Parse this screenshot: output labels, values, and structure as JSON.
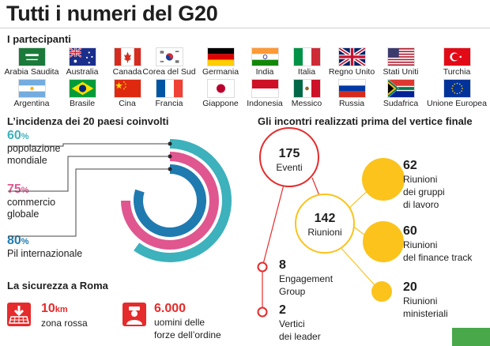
{
  "header": {
    "title": "Tutti i numeri del G20"
  },
  "participants": {
    "title": "I partecipanti",
    "countries": [
      {
        "name": "Arabia Saudita",
        "flag": "saudi-arabia"
      },
      {
        "name": "Australia",
        "flag": "australia"
      },
      {
        "name": "Canada",
        "flag": "canada"
      },
      {
        "name": "Corea del Sud",
        "flag": "south-korea"
      },
      {
        "name": "Germania",
        "flag": "germany"
      },
      {
        "name": "India",
        "flag": "india"
      },
      {
        "name": "Italia",
        "flag": "italy"
      },
      {
        "name": "Regno Unito",
        "flag": "united-kingdom"
      },
      {
        "name": "Stati Uniti",
        "flag": "united-states"
      },
      {
        "name": "Turchia",
        "flag": "turkey"
      },
      {
        "name": "Argentina",
        "flag": "argentina"
      },
      {
        "name": "Brasile",
        "flag": "brazil"
      },
      {
        "name": "Cina",
        "flag": "china"
      },
      {
        "name": "Francia",
        "flag": "france"
      },
      {
        "name": "Giappone",
        "flag": "japan"
      },
      {
        "name": "Indonesia",
        "flag": "indonesia"
      },
      {
        "name": "Messico",
        "flag": "mexico"
      },
      {
        "name": "Russia",
        "flag": "russia"
      },
      {
        "name": "Sudafrica",
        "flag": "south-africa"
      },
      {
        "name": "Unione Europea",
        "flag": "european-union"
      }
    ]
  },
  "incidence": {
    "title": "L’incidenza dei 20 paesi coinvolti",
    "items": [
      {
        "value": "60",
        "unit": "%",
        "label": "popolazione mondiale",
        "fraction": 0.6,
        "color": "#3db1bc"
      },
      {
        "value": "75",
        "unit": "%",
        "label": "commercio globale",
        "fraction": 0.75,
        "color": "#e0568f"
      },
      {
        "value": "80",
        "unit": "%",
        "label": "Pil internazionale",
        "fraction": 0.8,
        "color": "#1f7ab0"
      }
    ]
  },
  "security": {
    "title": "La sicurezza a Roma",
    "zone": {
      "value": "10",
      "unit": "km",
      "label": "zona rossa"
    },
    "forces": {
      "value": "6.000",
      "label_line1": "uomini delle",
      "label_line2": "forze dell’ordine"
    }
  },
  "meetings": {
    "title": "Gli incontri realizzati prima del vertice finale",
    "events": {
      "value": "175",
      "label": "Eventi"
    },
    "meetings": {
      "value": "142",
      "label": "Riunioni"
    },
    "work_groups": {
      "value": "62",
      "label_line1": "Riunioni",
      "label_line2": "dei gruppi",
      "label_line3": "di lavoro"
    },
    "finance": {
      "value": "60",
      "label_line1": "Riunioni",
      "label_line2": "del finance track"
    },
    "ministerial": {
      "value": "20",
      "label_line1": "Riunioni",
      "label_line2": "ministeriali"
    },
    "engagement": {
      "value": "8",
      "label_line1": "Engagement",
      "label_line2": "Group"
    },
    "leaders": {
      "value": "2",
      "label_line1": "Vertici",
      "label_line2": "dei leader"
    }
  },
  "colors": {
    "accent_red": "#e52b2b",
    "accent_yellow": "#fbc31c",
    "teal": "#3db1bc",
    "pink": "#e0568f",
    "blue": "#1f7ab0",
    "green": "#49a84a"
  }
}
